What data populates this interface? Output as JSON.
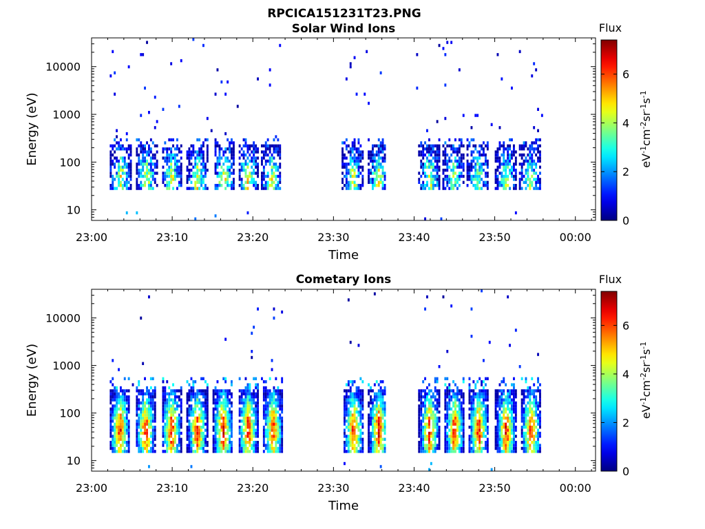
{
  "figure": {
    "title": "RPCICA151231T23.PNG"
  },
  "chart_data": [
    {
      "type": "heatmap",
      "title": "Solar Wind Ions",
      "xlabel": "Time",
      "ylabel": "Energy (eV)",
      "yscale": "log",
      "ylim": [
        6,
        40000
      ],
      "xlim_minutes": [
        0,
        62.5
      ],
      "x_tick_labels": [
        "23:00",
        "23:10",
        "23:20",
        "23:30",
        "23:40",
        "23:50",
        "00:00"
      ],
      "y_tick_labels": [
        "10",
        "100",
        "1000",
        "10000"
      ],
      "y_tick_values": [
        10,
        100,
        1000,
        10000
      ],
      "colorbar": {
        "label": "Flux",
        "unit_base": "eV",
        "unit_parts": [
          [
            "-1",
            "cm"
          ],
          [
            "-2",
            "sr"
          ],
          [
            "-1",
            "s"
          ],
          [
            "-1",
            ""
          ]
        ],
        "ticks": [
          "0",
          "2",
          "4",
          "6"
        ],
        "tick_values": [
          0,
          2,
          4,
          6
        ],
        "range": [
          0,
          7.4
        ],
        "colormap": "jet"
      },
      "data_segments_minutes": [
        [
          2,
          24
        ],
        [
          30.5,
          36.5
        ],
        [
          40,
          56
        ]
      ],
      "bursts": [
        {
          "t": 3.5,
          "peak": 4.5
        },
        {
          "t": 6.7,
          "peak": 4.6
        },
        {
          "t": 9.8,
          "peak": 4.7
        },
        {
          "t": 13.0,
          "peak": 4.6
        },
        {
          "t": 16.3,
          "peak": 4.8
        },
        {
          "t": 19.3,
          "peak": 4.7
        },
        {
          "t": 22.2,
          "peak": 4.2
        },
        {
          "t": 32.3,
          "peak": 4.4
        },
        {
          "t": 35.5,
          "peak": 4.4
        },
        {
          "t": 41.8,
          "peak": 4.3
        },
        {
          "t": 44.8,
          "peak": 4.0
        },
        {
          "t": 47.8,
          "peak": 3.8
        },
        {
          "t": 51.3,
          "peak": 4.1
        },
        {
          "t": 54.3,
          "peak": 4.0
        }
      ],
      "core_energy_range_eV": [
        25,
        250
      ]
    },
    {
      "type": "heatmap",
      "title": "Cometary Ions",
      "xlabel": "Time",
      "ylabel": "Energy (eV)",
      "yscale": "log",
      "ylim": [
        6,
        40000
      ],
      "xlim_minutes": [
        0,
        62.5
      ],
      "x_tick_labels": [
        "23:00",
        "23:10",
        "23:20",
        "23:30",
        "23:40",
        "23:50",
        "00:00"
      ],
      "y_tick_labels": [
        "10",
        "100",
        "1000",
        "10000"
      ],
      "y_tick_values": [
        10,
        100,
        1000,
        10000
      ],
      "colorbar": {
        "label": "Flux",
        "unit_base": "eV",
        "unit_parts": [
          [
            "-1",
            "cm"
          ],
          [
            "-2",
            "sr"
          ],
          [
            "-1",
            "s"
          ],
          [
            "-1",
            ""
          ]
        ],
        "ticks": [
          "0",
          "2",
          "4",
          "6"
        ],
        "tick_values": [
          0,
          2,
          4,
          6
        ],
        "range": [
          0,
          7.4
        ],
        "colormap": "jet"
      },
      "data_segments_minutes": [
        [
          2,
          24
        ],
        [
          30.5,
          36.5
        ],
        [
          40,
          56
        ]
      ],
      "bursts": [
        {
          "t": 3.4,
          "peak": 6.6
        },
        {
          "t": 6.6,
          "peak": 6.6
        },
        {
          "t": 9.8,
          "peak": 6.6
        },
        {
          "t": 13.0,
          "peak": 6.6
        },
        {
          "t": 16.2,
          "peak": 6.6
        },
        {
          "t": 19.3,
          "peak": 6.6
        },
        {
          "t": 22.4,
          "peak": 6.4
        },
        {
          "t": 32.4,
          "peak": 6.6
        },
        {
          "t": 35.5,
          "peak": 6.6
        },
        {
          "t": 41.8,
          "peak": 6.6
        },
        {
          "t": 44.9,
          "peak": 6.5
        },
        {
          "t": 47.9,
          "peak": 6.6
        },
        {
          "t": 51.3,
          "peak": 6.6
        },
        {
          "t": 54.4,
          "peak": 6.6
        }
      ],
      "core_energy_range_eV": [
        15,
        300
      ]
    }
  ]
}
